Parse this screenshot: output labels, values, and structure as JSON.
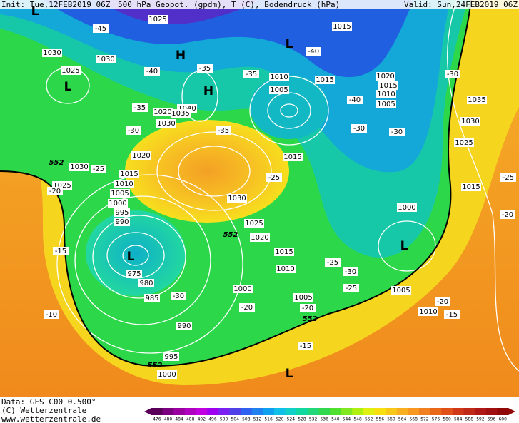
{
  "header": {
    "init": "Init: Tue,12FEB2019 06Z",
    "product": "500 hPa Geopot. (gpdm), T (C), Bodendruck (hPa)",
    "valid": "Valid: Sun,24FEB2019 06Z"
  },
  "map": {
    "isobar_labels": [
      1025,
      1030,
      1030,
      1025,
      1015,
      1010,
      1005,
      1015,
      1020,
      1015,
      1010,
      1005,
      1035,
      1030,
      1025,
      1020,
      1040,
      1035,
      1030,
      1020,
      1015,
      1030,
      1025,
      1015,
      1010,
      1005,
      1000,
      995,
      990,
      1030,
      1025,
      1020,
      1015,
      1010,
      1000,
      1015,
      975,
      980,
      985,
      1000,
      1005,
      990,
      995,
      1000,
      1005,
      1010
    ],
    "temperature_labels": [
      -45,
      -40,
      -40,
      -35,
      -35,
      -35,
      -30,
      -35,
      -40,
      -30,
      -30,
      -30,
      -25,
      -20,
      -25,
      -25,
      -20,
      -15,
      -10,
      -30,
      -20,
      -20,
      -25,
      -30,
      -25,
      -20,
      -15,
      -15
    ],
    "height_labels": [
      552,
      552,
      552,
      552
    ],
    "centers": [
      "L",
      "H",
      "H",
      "L",
      "L",
      "L",
      "L",
      "L"
    ]
  },
  "footer": {
    "data": "Data: GFS C00 0.500°",
    "copyright": "(C) Wetterzentrale",
    "url": "www.wetterzentrale.de"
  },
  "legend": {
    "labels": [
      476,
      480,
      484,
      488,
      492,
      496,
      500,
      504,
      508,
      512,
      516,
      520,
      524,
      528,
      532,
      536,
      540,
      544,
      548,
      552,
      556,
      560,
      564,
      568,
      572,
      576,
      580,
      584,
      588,
      592,
      596,
      600
    ]
  }
}
